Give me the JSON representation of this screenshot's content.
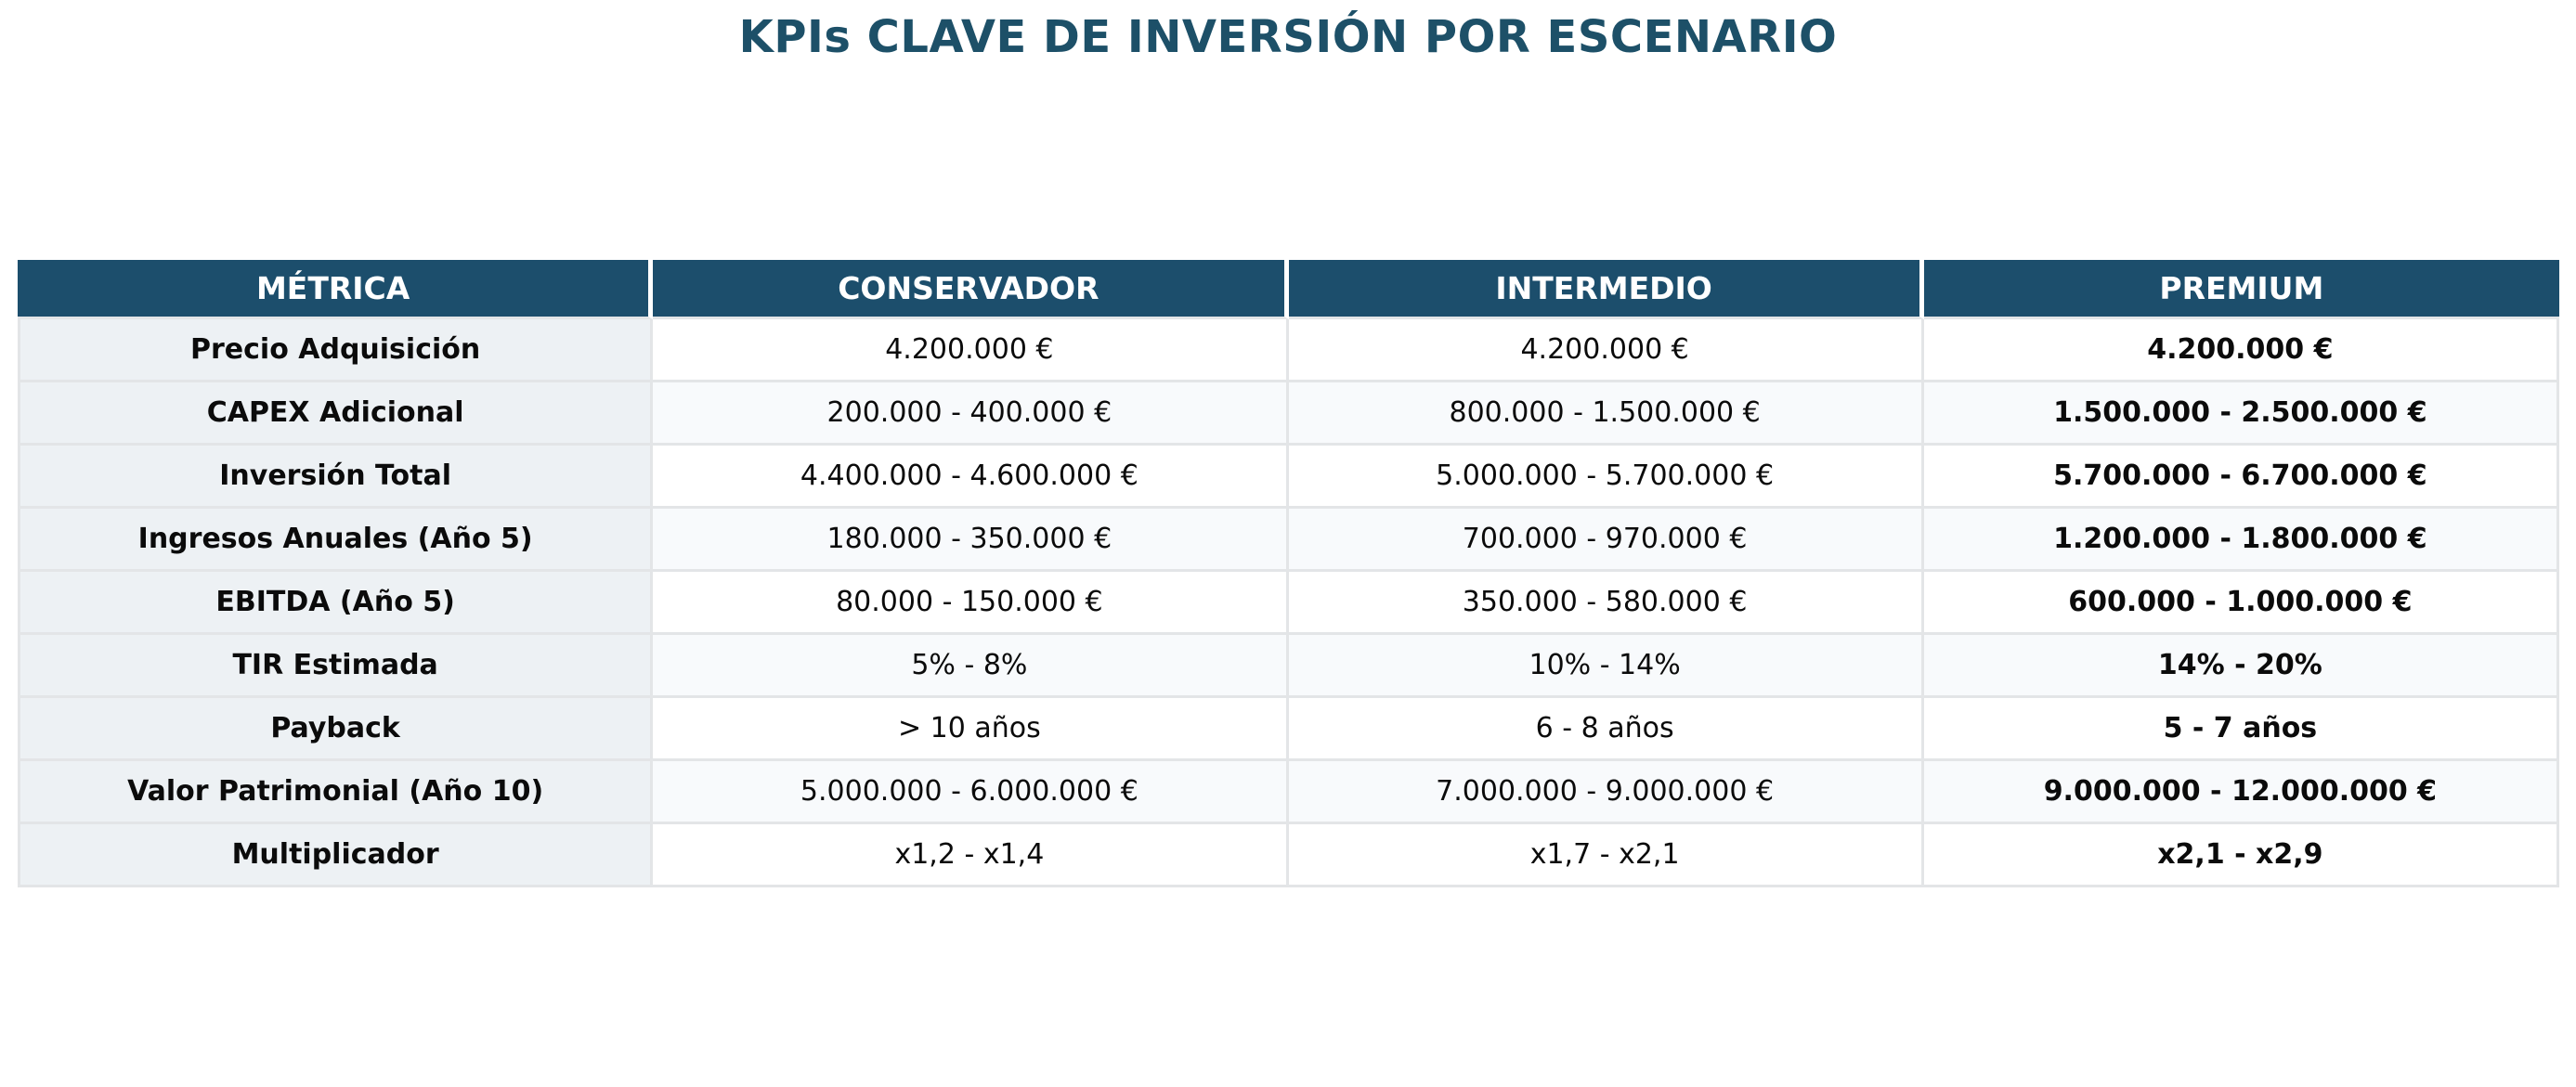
{
  "title": "KPIs CLAVE DE INVERSIÓN POR ESCENARIO",
  "colors": {
    "header_bg": "#1c4e6c",
    "title_color": "#1d5068",
    "premium_color": "#c0392b",
    "metric_col_bg": "#edf1f4",
    "alt_row_bg": "#f8fafc",
    "border_color": "#e3e5e7",
    "metric_text": "#1e2b3a",
    "value_text": "#0b0b0b"
  },
  "chart_data": {
    "type": "table",
    "title": "KPIs CLAVE DE INVERSIÓN POR ESCENARIO",
    "columns": [
      "MÉTRICA",
      "CONSERVADOR",
      "INTERMEDIO",
      "PREMIUM"
    ],
    "rows": [
      [
        "Precio Adquisición",
        "4.200.000 €",
        "4.200.000 €",
        "4.200.000 €"
      ],
      [
        "CAPEX Adicional",
        "200.000 - 400.000 €",
        "800.000 - 1.500.000 €",
        "1.500.000 - 2.500.000 €"
      ],
      [
        "Inversión Total",
        "4.400.000 - 4.600.000 €",
        "5.000.000 - 5.700.000 €",
        "5.700.000 - 6.700.000 €"
      ],
      [
        "Ingresos Anuales (Año 5)",
        "180.000 - 350.000 €",
        "700.000 - 970.000 €",
        "1.200.000 - 1.800.000 €"
      ],
      [
        "EBITDA (Año 5)",
        "80.000 - 150.000 €",
        "350.000 - 580.000 €",
        "600.000 - 1.000.000 €"
      ],
      [
        "TIR Estimada",
        "5% - 8%",
        "10% - 14%",
        "14% - 20%"
      ],
      [
        "Payback",
        "> 10 años",
        "6 - 8 años",
        "5 - 7 años"
      ],
      [
        "Valor Patrimonial (Año 10)",
        "5.000.000 - 6.000.000 €",
        "7.000.000 - 9.000.000 €",
        "9.000.000 - 12.000.000 €"
      ],
      [
        "Multiplicador",
        "x1,2 - x1,4",
        "x1,7 - x2,1",
        "x2,1 - x2,9"
      ]
    ],
    "highlight_column": "PREMIUM",
    "legend_position": "none",
    "grid": true
  }
}
